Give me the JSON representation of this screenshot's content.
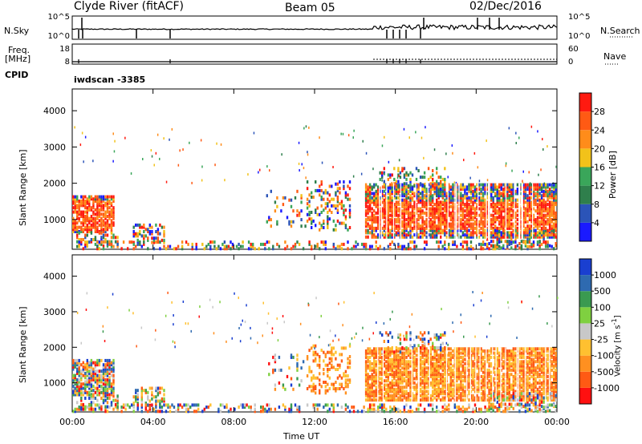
{
  "header": {
    "station": "Clyde River (fitACF)",
    "beam": "Beam 05",
    "date": "02/Dec/2016"
  },
  "strip_labels": {
    "nsky": "N.Sky",
    "freq": "Freq.",
    "freq_unit": "[MHz]",
    "cpid": "CPID",
    "nsearch": "N.Search",
    "nave": "Nave",
    "cpid_value": "iwdscan -3385"
  },
  "colors": {
    "power": [
      "#1a1aff",
      "#2b54b8",
      "#2f7f4c",
      "#3aa65a",
      "#f2c21a",
      "#ff8c1a",
      "#ff5a14",
      "#ff1a10"
    ],
    "velocity": [
      "#ff1010",
      "#ff5a14",
      "#ff9020",
      "#ffc030",
      "#c8c8c8",
      "#7fd040",
      "#3a9a50",
      "#2e6ab0",
      "#1a3fd0"
    ]
  },
  "chart_data": [
    {
      "type": "line",
      "name": "noise-sky-search",
      "y_tick_labels": [
        "10^5",
        "10^0"
      ],
      "right_tick_labels": [
        "10^5",
        "10^0"
      ],
      "x": [
        "00:00",
        "04:00",
        "08:00",
        "12:00",
        "16:00",
        "20:00",
        "00:00"
      ]
    },
    {
      "type": "line",
      "name": "frequency-nave",
      "y_tick_labels": [
        "18",
        "8"
      ],
      "right_tick_labels": [
        "60",
        "0"
      ]
    },
    {
      "type": "heatmap",
      "name": "power",
      "ylabel": "Slant Range [km]",
      "yticks": [
        1000,
        2000,
        3000,
        4000
      ],
      "ylim": [
        180,
        4600
      ],
      "xlim": [
        "00:00",
        "00:00"
      ],
      "colorbar_label": "Power [dB]",
      "colorbar_ticks": [
        4,
        8,
        12,
        16,
        20,
        24,
        28
      ]
    },
    {
      "type": "heatmap",
      "name": "velocity",
      "xlabel": "Time UT",
      "ylabel": "Slant Range [km]",
      "yticks": [
        1000,
        2000,
        3000,
        4000
      ],
      "ylim": [
        180,
        4600
      ],
      "xticks": [
        "00:00",
        "04:00",
        "08:00",
        "12:00",
        "16:00",
        "20:00",
        "00:00"
      ],
      "colorbar_label": "Velocity [m s^-1]",
      "colorbar_ticks": [
        -1000,
        -500,
        -100,
        -25,
        25,
        100,
        500,
        1000
      ]
    }
  ]
}
